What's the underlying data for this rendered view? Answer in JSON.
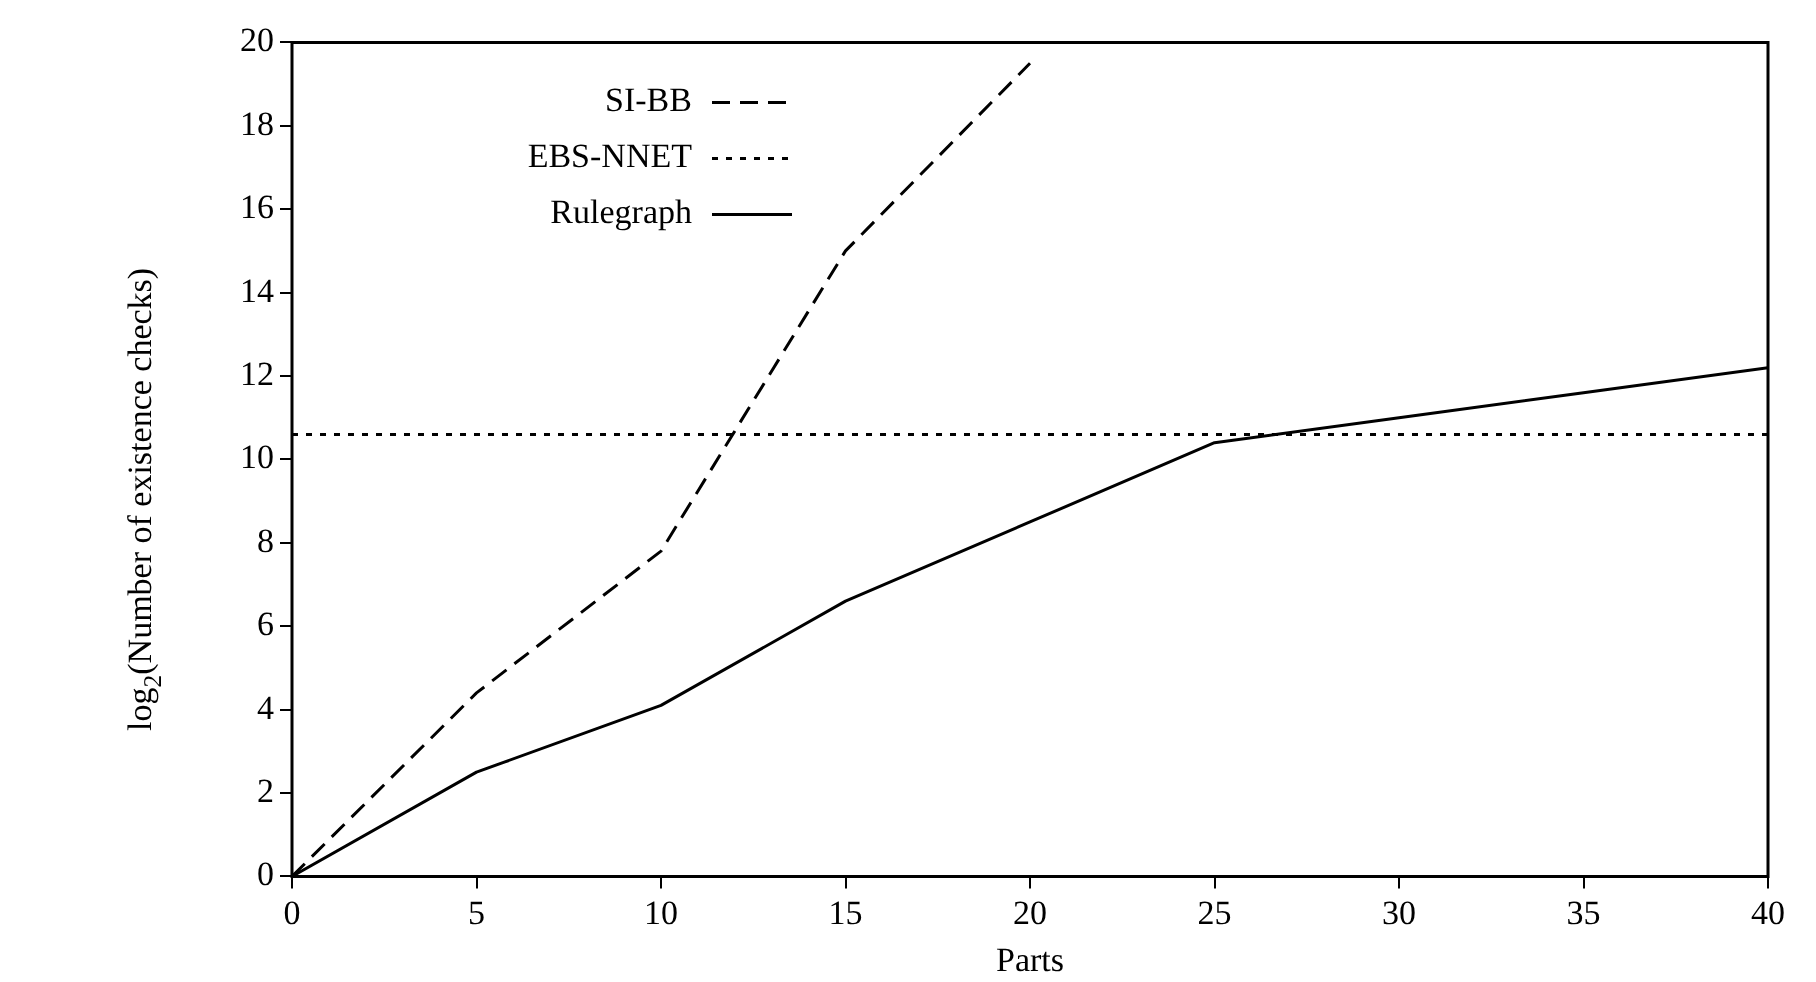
{
  "chart_data": {
    "type": "line",
    "xlabel": "Parts",
    "ylabel": "log$_{2}$(Number of existence checks)",
    "xlim": [
      0,
      40
    ],
    "xticks": [
      0,
      5,
      10,
      15,
      20,
      25,
      30,
      35,
      40
    ],
    "ylim": [
      0,
      20
    ],
    "yticks": [
      0,
      2,
      4,
      6,
      8,
      10,
      12,
      14,
      16,
      18,
      20
    ],
    "grid": false,
    "legend": "top left",
    "marker": "none",
    "series": [
      {
        "name": "SI-BB",
        "color": "#000000",
        "line_style": "dashed",
        "x": [
          0,
          5,
          10,
          15,
          20
        ],
        "values": [
          0,
          4.4,
          7.8,
          15,
          19.5
        ]
      },
      {
        "name": "EBS-NNET",
        "color": "#000000",
        "line_style": "dotted",
        "x": [
          0,
          40
        ],
        "values": [
          10.6,
          10.6
        ]
      },
      {
        "name": "Rulegraph",
        "color": "#000000",
        "line_style": "solid",
        "x": [
          0,
          5,
          10,
          15,
          20,
          25,
          30,
          35,
          40
        ],
        "values": [
          0,
          2.5,
          4.1,
          6.6,
          8.5,
          10.4,
          11,
          11.6,
          12.2
        ]
      }
    ]
  }
}
